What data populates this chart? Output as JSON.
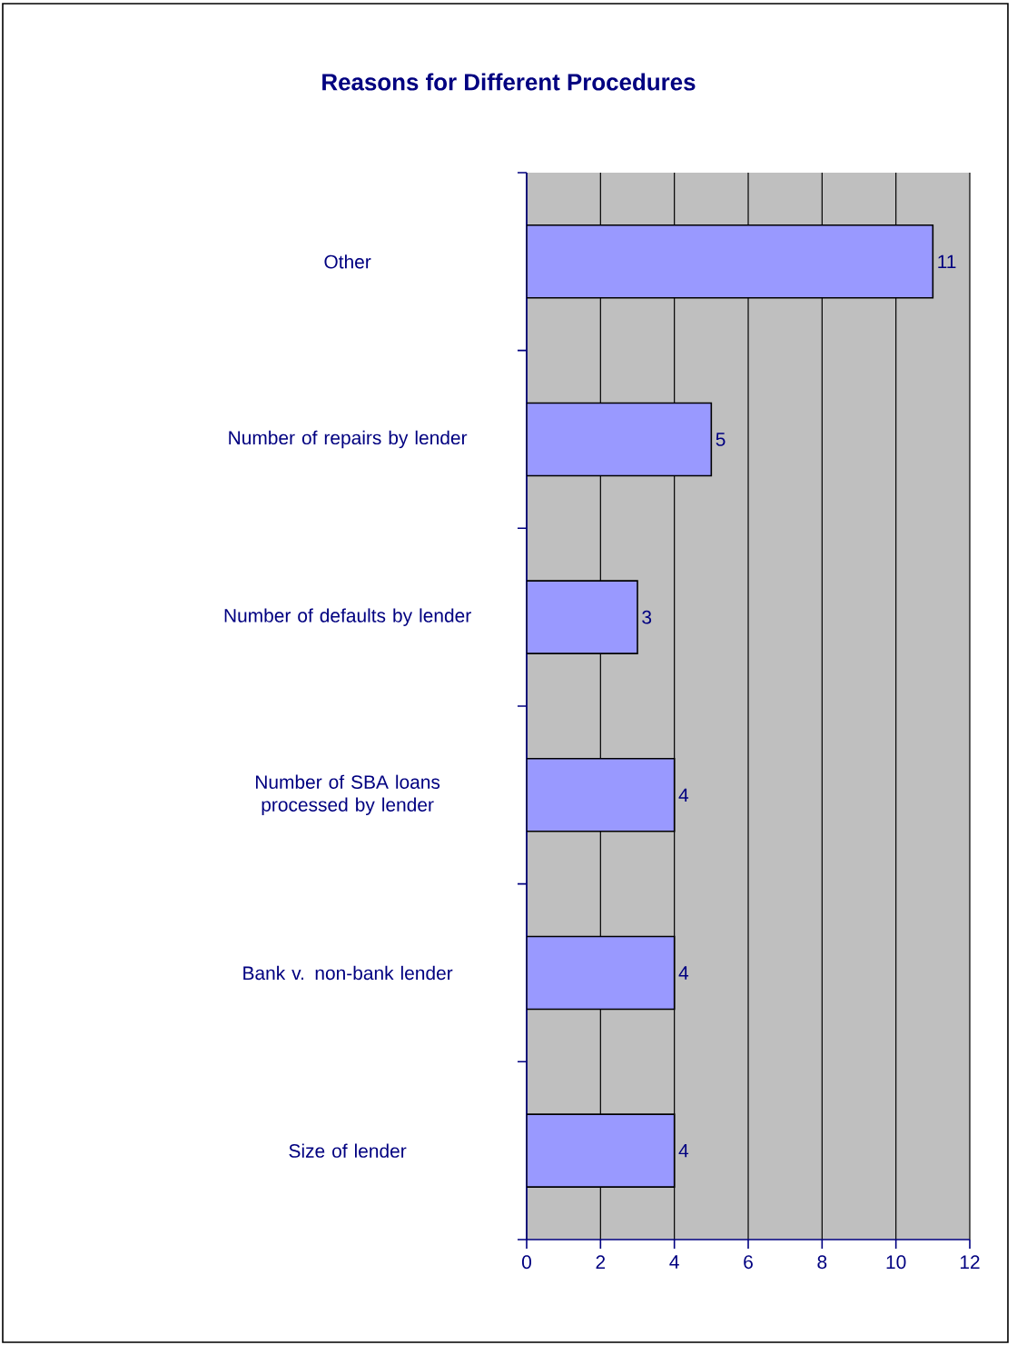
{
  "chart_data": {
    "type": "bar",
    "orientation": "horizontal",
    "title": "Reasons for Different Procedures",
    "categories": [
      "Other",
      "Number of repairs by lender",
      "Number of defaults by lender",
      "Number of SBA loans processed by lender",
      "Bank v. non-bank lender",
      "Size of lender"
    ],
    "values": [
      11,
      5,
      3,
      4,
      4,
      4
    ],
    "color": "#9999ff",
    "xlim": [
      0,
      12
    ],
    "xticks": [
      0,
      2,
      4,
      6,
      8,
      10,
      12
    ],
    "grid": "x",
    "data_labels": true
  }
}
